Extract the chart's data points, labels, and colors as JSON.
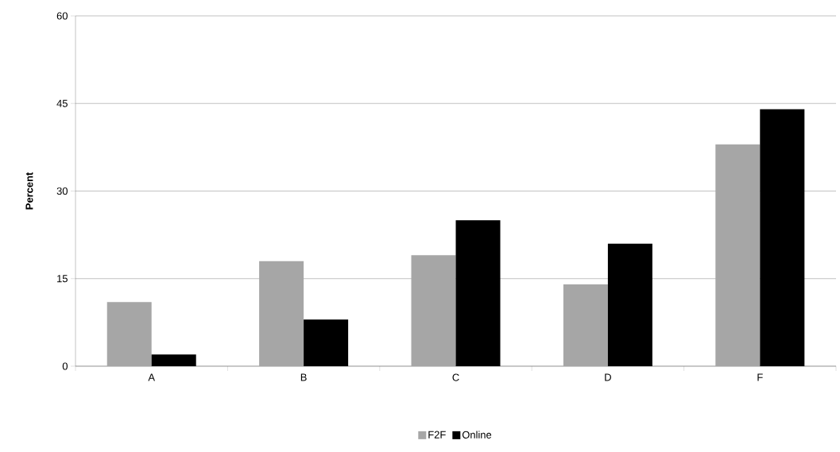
{
  "chart_data": {
    "type": "bar",
    "ylabel": "Percent",
    "categories": [
      "A",
      "B",
      "C",
      "D",
      "F"
    ],
    "series": [
      {
        "name": "F2F",
        "color": "#a6a6a6",
        "values": [
          11,
          18,
          19,
          14,
          38
        ]
      },
      {
        "name": "Online",
        "color": "#000000",
        "values": [
          2,
          8,
          25,
          21,
          44
        ]
      }
    ],
    "ylim": [
      0,
      60
    ],
    "yticks": [
      0,
      15,
      30,
      45,
      60
    ],
    "grid": "y",
    "legend": "bottom"
  }
}
